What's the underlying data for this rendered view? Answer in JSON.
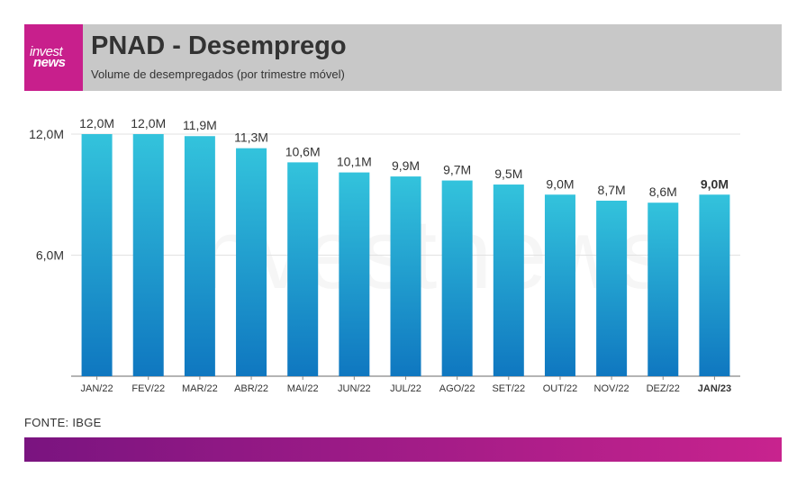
{
  "header": {
    "logo_top": "invest",
    "logo_bottom": "news",
    "title": "PNAD  -  Desemprego",
    "subtitle": "Volume de desempregados (por trimestre móvel)"
  },
  "watermark": "investnews",
  "source": "FONTE: IBGE",
  "colors": {
    "header_bg": "#c8c8c8",
    "logo_bg": "#c81f8c",
    "bar_top": "#33c3dc",
    "bar_bottom": "#0f77c0",
    "footer_start": "#7a1480",
    "footer_end": "#c8238e"
  },
  "chart_data": {
    "type": "bar",
    "categories": [
      "JAN/22",
      "FEV/22",
      "MAR/22",
      "ABR/22",
      "MAI/22",
      "JUN/22",
      "JUL/22",
      "AGO/22",
      "SET/22",
      "OUT/22",
      "NOV/22",
      "DEZ/22",
      "JAN/23"
    ],
    "values": [
      12.0,
      12.0,
      11.9,
      11.3,
      10.6,
      10.1,
      9.9,
      9.7,
      9.5,
      9.0,
      8.7,
      8.6,
      9.0
    ],
    "data_labels": [
      "12,0M",
      "12,0M",
      "11,9M",
      "11,3M",
      "10,6M",
      "10,1M",
      "9,9M",
      "9,7M",
      "9,5M",
      "9,0M",
      "8,7M",
      "8,6M",
      "9,0M"
    ],
    "highlight_last": true,
    "yticks": [
      6.0,
      12.0
    ],
    "ytick_labels": [
      "6,0M",
      "12,0M"
    ],
    "ylim": [
      0,
      12
    ],
    "grid": true,
    "legend": "none",
    "title": "",
    "xlabel": "",
    "ylabel": ""
  }
}
